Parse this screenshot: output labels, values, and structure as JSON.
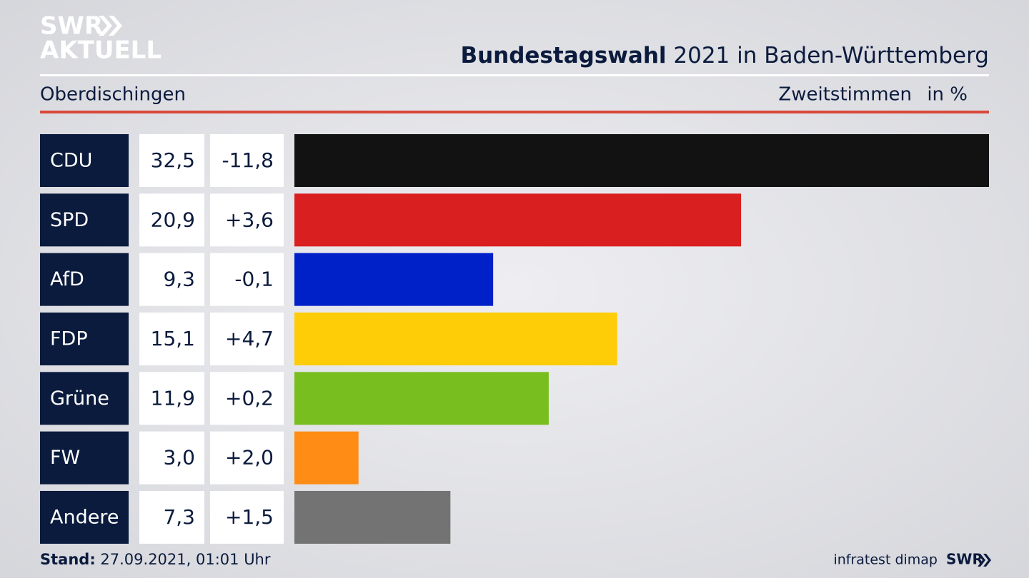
{
  "chart_data": {
    "type": "bar",
    "logo": [
      "SWR",
      "AKTUELL"
    ],
    "title_bold": "Bundestagswahl",
    "title": "2021 in Baden-Württemberg",
    "subtitle": "Oberdischingen",
    "measure": "Zweitstimmen",
    "unit": "in %",
    "categories": [
      "CDU",
      "SPD",
      "AfD",
      "FDP",
      "Grüne",
      "FW",
      "Andere"
    ],
    "values": [
      32.5,
      20.9,
      9.3,
      15.1,
      11.9,
      3.0,
      7.3
    ],
    "value_labels": [
      "32,5",
      "20,9",
      "9,3",
      "15,1",
      "11,9",
      "3,0",
      "7,3"
    ],
    "changes": [
      -11.8,
      3.6,
      -0.1,
      4.7,
      0.2,
      2.0,
      1.5
    ],
    "change_labels": [
      "-11,8",
      "+3,6",
      "-0,1",
      "+4,7",
      "+0,2",
      "+2,0",
      "+1,5"
    ],
    "colors": [
      "#121212",
      "#d91f1f",
      "#0020c8",
      "#ffcc08",
      "#78be1e",
      "#ff8c14",
      "#737373"
    ],
    "footer_label": "Stand:",
    "footer_date": "27.09.2021, 01:01 Uhr",
    "source": "infratest dimap",
    "source_logo": "SWR"
  }
}
